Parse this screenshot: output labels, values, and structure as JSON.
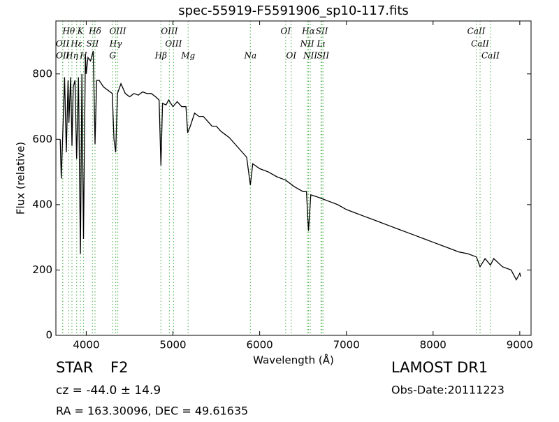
{
  "chart_data": {
    "type": "line",
    "title": "spec-55919-F5591906_sp10-117.fits",
    "x_label": "Wavelength (Å)",
    "y_label": "Flux (relative)",
    "xlim": [
      3650,
      9130
    ],
    "ylim": [
      0,
      962
    ],
    "xticks": [
      4000,
      5000,
      6000,
      7000,
      8000,
      9000
    ],
    "yticks": [
      0,
      200,
      400,
      600,
      800
    ],
    "color": "#000000",
    "line_color": "#66bb66",
    "x": [
      3700,
      3712,
      3730,
      3750,
      3770,
      3790,
      3800,
      3820,
      3835,
      3850,
      3870,
      3889,
      3910,
      3933,
      3950,
      3968,
      3990,
      4000,
      4020,
      4050,
      4080,
      4101,
      4120,
      4150,
      4200,
      4250,
      4300,
      4320,
      4340,
      4360,
      4400,
      4450,
      4500,
      4550,
      4600,
      4650,
      4700,
      4750,
      4800,
      4840,
      4861,
      4880,
      4920,
      4950,
      5000,
      5050,
      5100,
      5150,
      5170,
      5200,
      5250,
      5300,
      5350,
      5400,
      5450,
      5500,
      5550,
      5600,
      5650,
      5700,
      5750,
      5800,
      5850,
      5893,
      5920,
      6000,
      6100,
      6200,
      6300,
      6400,
      6500,
      6540,
      6563,
      6590,
      6650,
      6700,
      6800,
      6900,
      7000,
      7100,
      7200,
      7300,
      7400,
      7500,
      7600,
      7700,
      7800,
      7900,
      8000,
      8100,
      8200,
      8300,
      8400,
      8500,
      8542,
      8600,
      8662,
      8700,
      8800,
      8900,
      8960,
      9000,
      9010
    ],
    "values": [
      600,
      480,
      620,
      790,
      560,
      780,
      650,
      790,
      580,
      760,
      780,
      540,
      790,
      250,
      800,
      295,
      860,
      800,
      850,
      840,
      870,
      585,
      780,
      780,
      760,
      750,
      740,
      600,
      560,
      740,
      770,
      740,
      730,
      740,
      735,
      745,
      740,
      740,
      730,
      720,
      520,
      710,
      705,
      720,
      700,
      715,
      700,
      700,
      620,
      640,
      680,
      670,
      670,
      655,
      640,
      640,
      625,
      615,
      605,
      590,
      575,
      560,
      545,
      460,
      525,
      510,
      500,
      485,
      475,
      455,
      440,
      440,
      320,
      430,
      425,
      420,
      410,
      400,
      385,
      375,
      365,
      355,
      345,
      335,
      325,
      315,
      305,
      295,
      285,
      275,
      265,
      255,
      250,
      240,
      210,
      235,
      215,
      235,
      210,
      200,
      170,
      190,
      180
    ],
    "line_labels": [
      [
        {
          "x": 3798,
          "label": "Hθ"
        },
        {
          "x": 3933,
          "label": "K"
        },
        {
          "x": 4101,
          "label": "Hδ"
        },
        {
          "x": 4363,
          "label": "OIII"
        },
        {
          "x": 4959,
          "label": "OIII"
        },
        {
          "x": 6300,
          "label": "OI"
        },
        {
          "x": 6563,
          "label": "Hα"
        },
        {
          "x": 6717,
          "label": "SII"
        },
        {
          "x": 8498,
          "label": "CaII"
        }
      ],
      [
        {
          "x": 3727,
          "label": "OII"
        },
        {
          "x": 3889,
          "label": "Hε"
        },
        {
          "x": 4072,
          "label": "SII"
        },
        {
          "x": 4340,
          "label": "Hγ"
        },
        {
          "x": 5007,
          "label": "OIII"
        },
        {
          "x": 6548,
          "label": "NII"
        },
        {
          "x": 6708,
          "label": "Lı"
        },
        {
          "x": 8542,
          "label": "CaII"
        }
      ],
      [
        {
          "x": 3729,
          "label": "OII"
        },
        {
          "x": 3835,
          "label": "Hη"
        },
        {
          "x": 3968,
          "label": "H"
        },
        {
          "x": 4304,
          "label": "G"
        },
        {
          "x": 4861,
          "label": "Hβ"
        },
        {
          "x": 5175,
          "label": "Mg"
        },
        {
          "x": 5893,
          "label": "Na"
        },
        {
          "x": 6364,
          "label": "OI"
        },
        {
          "x": 6584,
          "label": "NII"
        },
        {
          "x": 6731,
          "label": "SII"
        },
        {
          "x": 8662,
          "label": "CaII"
        }
      ]
    ]
  },
  "footer": {
    "class": "STAR",
    "subclass": "F2",
    "cz": "cz = -44.0 ± 14.9",
    "coords": "RA = 163.30096, DEC = 49.61635",
    "survey": "LAMOST DR1",
    "date": "Obs-Date:20111223"
  }
}
